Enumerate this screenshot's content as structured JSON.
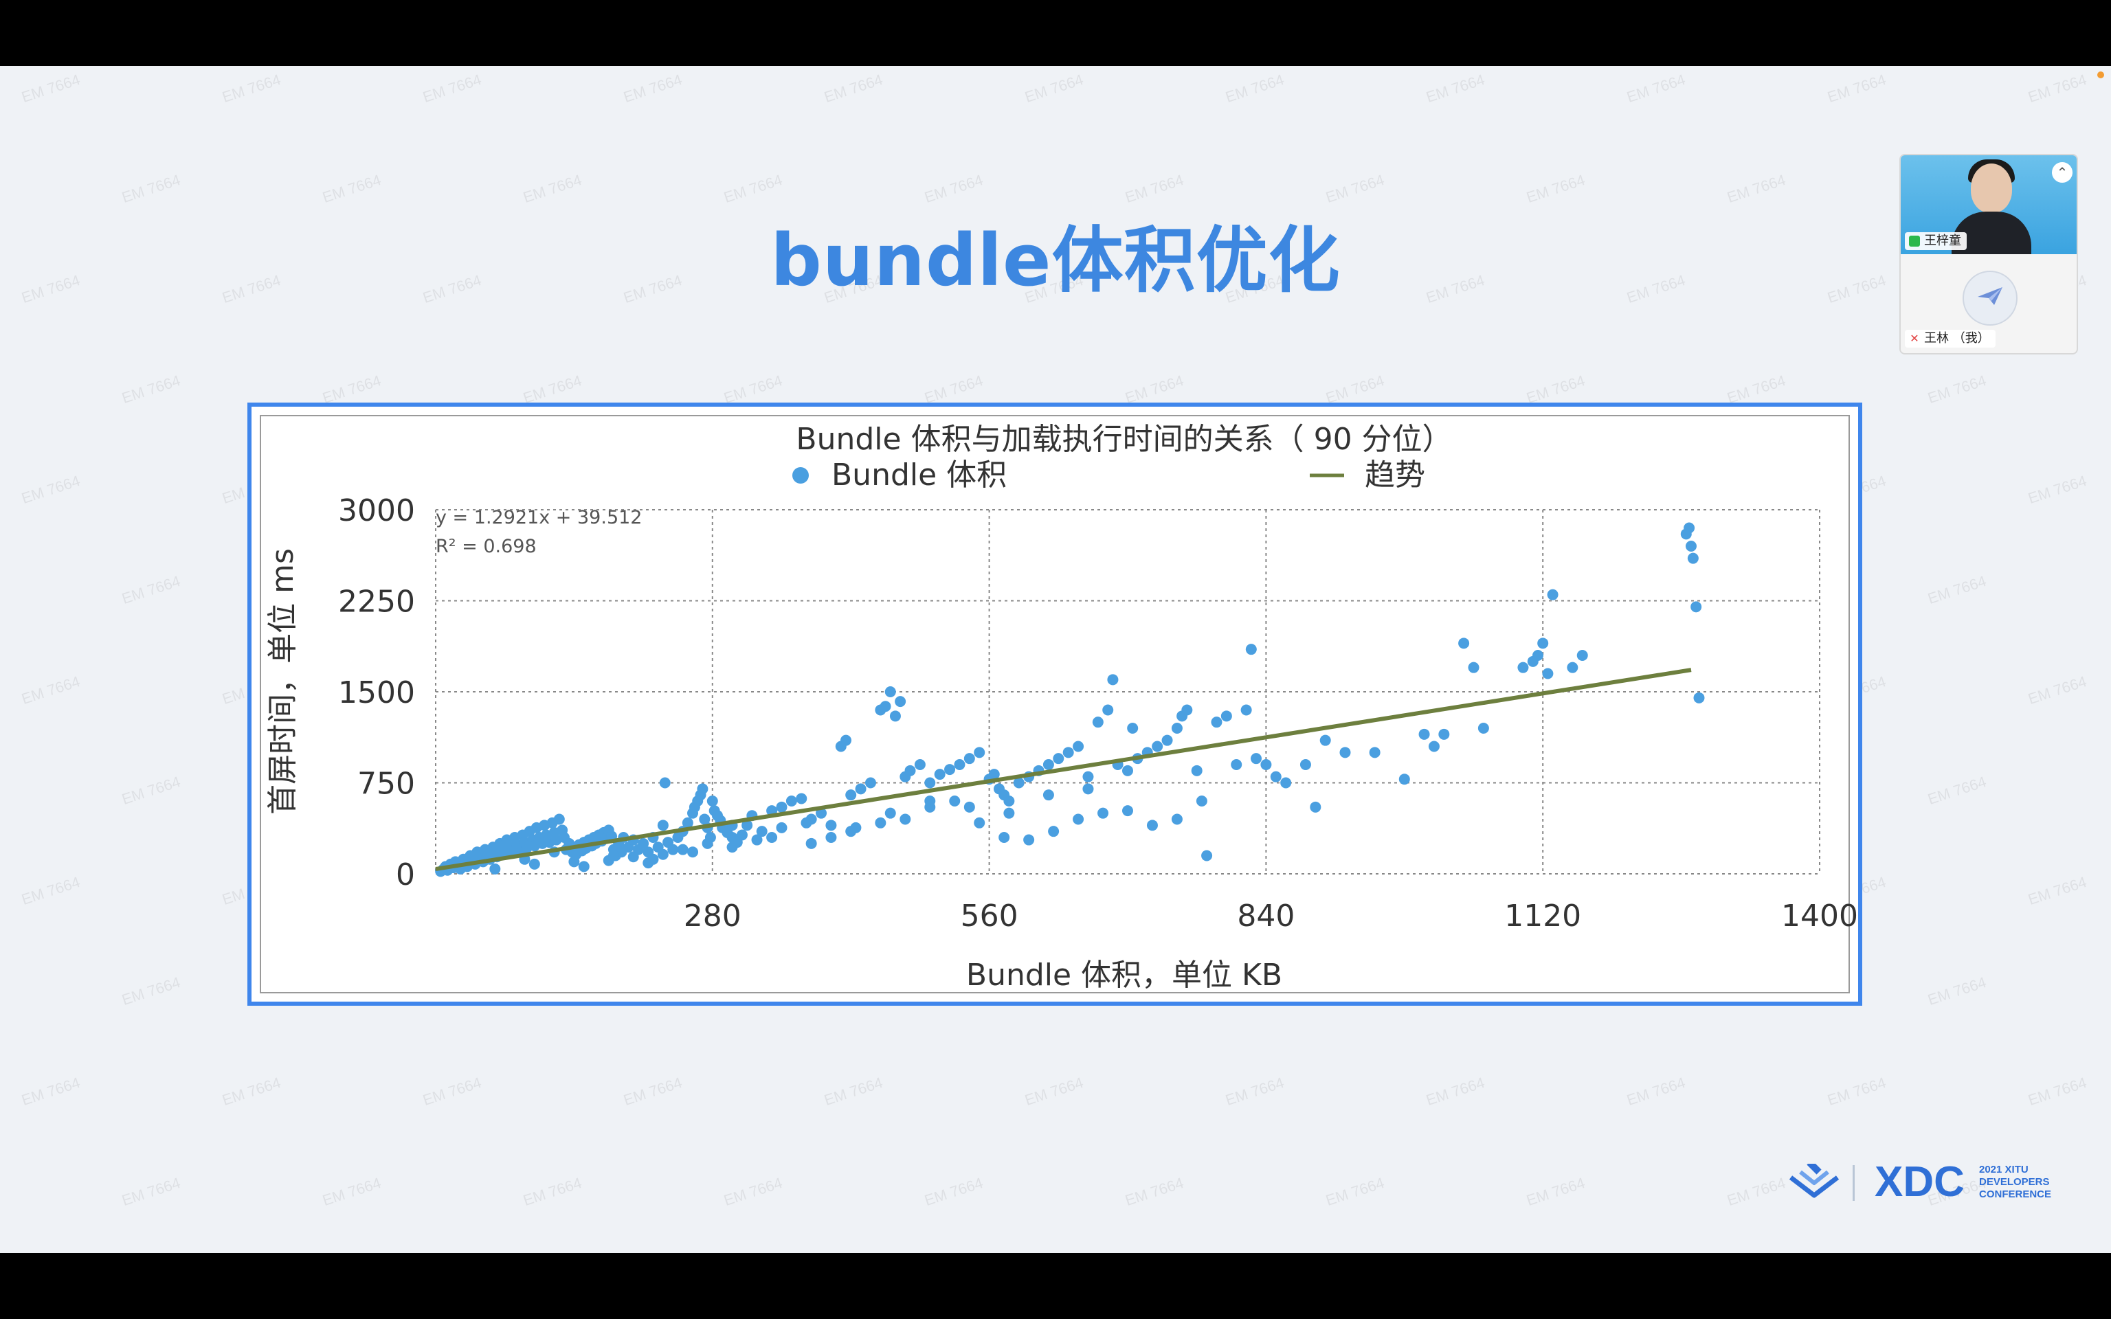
{
  "slide": {
    "title": "bundle体积优化",
    "watermark": "EM 7664"
  },
  "video": {
    "participants": [
      {
        "name": "王梓童",
        "status": "screen-share-icon"
      },
      {
        "name": "王林 （我）",
        "status": "mic-off-icon"
      }
    ]
  },
  "logo": {
    "brand": "XDC",
    "subtitle_lines": [
      "2021 XITU",
      "DEVELOPERS",
      "CONFERENCE"
    ],
    "color": "#2f6fd6"
  },
  "chart_data": {
    "type": "scatter",
    "title": "Bundle 体积与加载执行时间的关系（ 90 分位）",
    "xlabel": "Bundle 体积，单位 KB",
    "ylabel": "首屏时间，单位 ms",
    "xlim": [
      0,
      1400
    ],
    "ylim": [
      0,
      3000
    ],
    "xticks": [
      "280",
      "560",
      "840",
      "1120",
      "1400"
    ],
    "yticks": [
      "0",
      "750",
      "1500",
      "2250",
      "3000"
    ],
    "grid": true,
    "legend": [
      {
        "label": "Bundle 体积",
        "marker": "dot",
        "color": "#4a9fe0"
      },
      {
        "label": "趋势",
        "marker": "line",
        "color": "#6d7f3e"
      }
    ],
    "legend_position": "top",
    "trendline": {
      "equation": "y = 1.2921x + 39.512",
      "r2": "R² = 0.698",
      "slope": 1.2921,
      "intercept": 39.512,
      "x_range": [
        0,
        1270
      ]
    },
    "series": [
      {
        "name": "Bundle 体积",
        "points": [
          [
            5,
            20
          ],
          [
            8,
            40
          ],
          [
            10,
            60
          ],
          [
            12,
            30
          ],
          [
            15,
            80
          ],
          [
            18,
            50
          ],
          [
            20,
            100
          ],
          [
            22,
            70
          ],
          [
            25,
            40
          ],
          [
            28,
            120
          ],
          [
            30,
            90
          ],
          [
            32,
            60
          ],
          [
            35,
            150
          ],
          [
            38,
            110
          ],
          [
            40,
            80
          ],
          [
            42,
            180
          ],
          [
            45,
            130
          ],
          [
            48,
            100
          ],
          [
            50,
            200
          ],
          [
            52,
            160
          ],
          [
            55,
            120
          ],
          [
            58,
            220
          ],
          [
            60,
            180
          ],
          [
            62,
            140
          ],
          [
            65,
            250
          ],
          [
            68,
            200
          ],
          [
            70,
            160
          ],
          [
            72,
            280
          ],
          [
            75,
            220
          ],
          [
            78,
            180
          ],
          [
            80,
            300
          ],
          [
            82,
            240
          ],
          [
            85,
            190
          ],
          [
            88,
            320
          ],
          [
            90,
            260
          ],
          [
            92,
            210
          ],
          [
            95,
            350
          ],
          [
            98,
            280
          ],
          [
            100,
            230
          ],
          [
            102,
            380
          ],
          [
            105,
            300
          ],
          [
            108,
            250
          ],
          [
            110,
            400
          ],
          [
            112,
            320
          ],
          [
            115,
            260
          ],
          [
            118,
            420
          ],
          [
            120,
            340
          ],
          [
            122,
            280
          ],
          [
            125,
            450
          ],
          [
            128,
            360
          ],
          [
            130,
            300
          ],
          [
            132,
            200
          ],
          [
            135,
            250
          ],
          [
            138,
            180
          ],
          [
            140,
            220
          ],
          [
            142,
            160
          ],
          [
            145,
            240
          ],
          [
            148,
            190
          ],
          [
            150,
            260
          ],
          [
            152,
            210
          ],
          [
            155,
            280
          ],
          [
            158,
            230
          ],
          [
            160,
            300
          ],
          [
            162,
            250
          ],
          [
            165,
            320
          ],
          [
            168,
            270
          ],
          [
            170,
            340
          ],
          [
            172,
            290
          ],
          [
            175,
            360
          ],
          [
            178,
            310
          ],
          [
            180,
            200
          ],
          [
            182,
            150
          ],
          [
            185,
            250
          ],
          [
            188,
            180
          ],
          [
            190,
            300
          ],
          [
            195,
            220
          ],
          [
            200,
            280
          ],
          [
            205,
            200
          ],
          [
            210,
            250
          ],
          [
            215,
            180
          ],
          [
            220,
            300
          ],
          [
            225,
            220
          ],
          [
            230,
            400
          ],
          [
            232,
            750
          ],
          [
            235,
            260
          ],
          [
            240,
            200
          ],
          [
            245,
            300
          ],
          [
            250,
            350
          ],
          [
            255,
            420
          ],
          [
            260,
            500
          ],
          [
            262,
            550
          ],
          [
            265,
            600
          ],
          [
            268,
            650
          ],
          [
            270,
            700
          ],
          [
            272,
            450
          ],
          [
            275,
            380
          ],
          [
            278,
            300
          ],
          [
            280,
            600
          ],
          [
            282,
            520
          ],
          [
            285,
            480
          ],
          [
            288,
            440
          ],
          [
            290,
            380
          ],
          [
            295,
            340
          ],
          [
            300,
            300
          ],
          [
            305,
            260
          ],
          [
            310,
            320
          ],
          [
            315,
            400
          ],
          [
            320,
            480
          ],
          [
            330,
            350
          ],
          [
            340,
            520
          ],
          [
            350,
            550
          ],
          [
            360,
            600
          ],
          [
            370,
            620
          ],
          [
            380,
            450
          ],
          [
            390,
            500
          ],
          [
            400,
            400
          ],
          [
            410,
            1050
          ],
          [
            415,
            1100
          ],
          [
            420,
            650
          ],
          [
            430,
            700
          ],
          [
            440,
            750
          ],
          [
            450,
            1350
          ],
          [
            455,
            1380
          ],
          [
            460,
            1500
          ],
          [
            465,
            1300
          ],
          [
            470,
            1420
          ],
          [
            475,
            800
          ],
          [
            480,
            850
          ],
          [
            490,
            900
          ],
          [
            500,
            750
          ],
          [
            510,
            820
          ],
          [
            520,
            860
          ],
          [
            530,
            900
          ],
          [
            540,
            950
          ],
          [
            550,
            1000
          ],
          [
            560,
            780
          ],
          [
            565,
            820
          ],
          [
            570,
            700
          ],
          [
            575,
            650
          ],
          [
            580,
            600
          ],
          [
            590,
            750
          ],
          [
            600,
            800
          ],
          [
            610,
            850
          ],
          [
            620,
            900
          ],
          [
            630,
            950
          ],
          [
            640,
            1000
          ],
          [
            650,
            1050
          ],
          [
            660,
            800
          ],
          [
            670,
            1250
          ],
          [
            680,
            1350
          ],
          [
            685,
            1600
          ],
          [
            690,
            900
          ],
          [
            700,
            850
          ],
          [
            705,
            1200
          ],
          [
            710,
            950
          ],
          [
            720,
            1000
          ],
          [
            730,
            1050
          ],
          [
            740,
            1100
          ],
          [
            750,
            1200
          ],
          [
            755,
            1300
          ],
          [
            760,
            1350
          ],
          [
            770,
            850
          ],
          [
            780,
            150
          ],
          [
            790,
            1250
          ],
          [
            800,
            1300
          ],
          [
            810,
            900
          ],
          [
            820,
            1350
          ],
          [
            825,
            1850
          ],
          [
            830,
            950
          ],
          [
            840,
            900
          ],
          [
            850,
            800
          ],
          [
            860,
            750
          ],
          [
            880,
            900
          ],
          [
            890,
            550
          ],
          [
            900,
            1100
          ],
          [
            920,
            1000
          ],
          [
            950,
            1000
          ],
          [
            980,
            780
          ],
          [
            1000,
            1150
          ],
          [
            1010,
            1050
          ],
          [
            1020,
            1150
          ],
          [
            1040,
            1900
          ],
          [
            1050,
            1700
          ],
          [
            1060,
            1200
          ],
          [
            1100,
            1700
          ],
          [
            1110,
            1750
          ],
          [
            1115,
            1800
          ],
          [
            1120,
            1900
          ],
          [
            1125,
            1650
          ],
          [
            1130,
            2300
          ],
          [
            1150,
            1700
          ],
          [
            1160,
            1800
          ],
          [
            1265,
            2800
          ],
          [
            1268,
            2850
          ],
          [
            1270,
            2700
          ],
          [
            1272,
            2600
          ],
          [
            1275,
            2200
          ],
          [
            1278,
            1450
          ],
          [
            60,
            40
          ],
          [
            90,
            120
          ],
          [
            120,
            180
          ],
          [
            150,
            60
          ],
          [
            175,
            110
          ],
          [
            200,
            140
          ],
          [
            215,
            90
          ],
          [
            230,
            160
          ],
          [
            250,
            200
          ],
          [
            275,
            250
          ],
          [
            300,
            220
          ],
          [
            325,
            280
          ],
          [
            350,
            380
          ],
          [
            375,
            420
          ],
          [
            400,
            300
          ],
          [
            425,
            380
          ],
          [
            450,
            420
          ],
          [
            475,
            450
          ],
          [
            500,
            550
          ],
          [
            525,
            600
          ],
          [
            550,
            420
          ],
          [
            575,
            300
          ],
          [
            600,
            280
          ],
          [
            625,
            350
          ],
          [
            650,
            450
          ],
          [
            675,
            500
          ],
          [
            700,
            520
          ],
          [
            725,
            400
          ],
          [
            750,
            450
          ],
          [
            775,
            600
          ],
          [
            100,
            80
          ],
          [
            140,
            100
          ],
          [
            180,
            150
          ],
          [
            220,
            120
          ],
          [
            260,
            180
          ],
          [
            300,
            400
          ],
          [
            340,
            300
          ],
          [
            380,
            250
          ],
          [
            420,
            350
          ],
          [
            460,
            500
          ],
          [
            500,
            600
          ],
          [
            540,
            550
          ],
          [
            580,
            500
          ],
          [
            620,
            650
          ],
          [
            660,
            700
          ]
        ]
      }
    ]
  }
}
